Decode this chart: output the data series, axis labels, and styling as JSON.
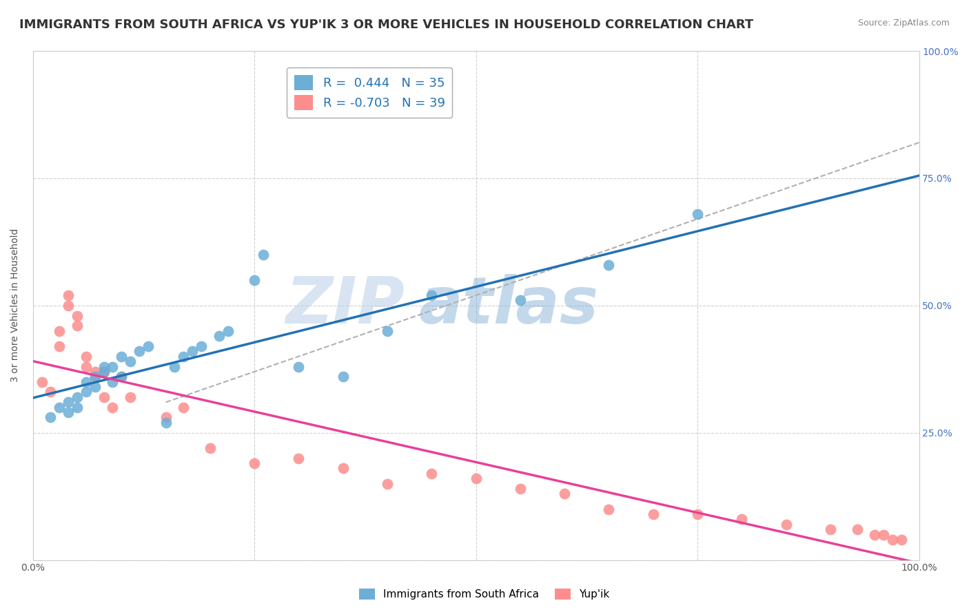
{
  "title": "IMMIGRANTS FROM SOUTH AFRICA VS YUP'IK 3 OR MORE VEHICLES IN HOUSEHOLD CORRELATION CHART",
  "source": "Source: ZipAtlas.com",
  "ylabel": "3 or more Vehicles in Household",
  "series1_label": "Immigrants from South Africa",
  "series2_label": "Yup'ik",
  "series1_R": 0.444,
  "series1_N": 35,
  "series2_R": -0.703,
  "series2_N": 39,
  "series1_color": "#6baed6",
  "series2_color": "#fc8d8d",
  "series1_line_color": "#2171b5",
  "series2_line_color": "#e8409a",
  "trend_line_color": "#b0b0b0",
  "xlim": [
    0.0,
    1.0
  ],
  "ylim": [
    0.0,
    1.0
  ],
  "x_ticks": [
    0.0,
    0.25,
    0.5,
    0.75,
    1.0
  ],
  "x_ticklabels": [
    "0.0%",
    "",
    "",
    "",
    "100.0%"
  ],
  "y_ticks": [
    0.0,
    0.25,
    0.5,
    0.75,
    1.0
  ],
  "y_ticklabels": [
    "",
    "25.0%",
    "50.0%",
    "75.0%",
    "100.0%"
  ],
  "watermark_zip": "ZIP",
  "watermark_atlas": "atlas",
  "series1_x": [
    0.02,
    0.03,
    0.04,
    0.04,
    0.05,
    0.05,
    0.06,
    0.06,
    0.07,
    0.07,
    0.08,
    0.08,
    0.09,
    0.09,
    0.1,
    0.1,
    0.11,
    0.12,
    0.13,
    0.15,
    0.16,
    0.17,
    0.18,
    0.19,
    0.21,
    0.22,
    0.25,
    0.26,
    0.3,
    0.35,
    0.4,
    0.45,
    0.55,
    0.65,
    0.75
  ],
  "series1_y": [
    0.28,
    0.3,
    0.29,
    0.31,
    0.32,
    0.3,
    0.33,
    0.35,
    0.36,
    0.34,
    0.37,
    0.38,
    0.38,
    0.35,
    0.36,
    0.4,
    0.39,
    0.41,
    0.42,
    0.27,
    0.38,
    0.4,
    0.41,
    0.42,
    0.44,
    0.45,
    0.55,
    0.6,
    0.38,
    0.36,
    0.45,
    0.52,
    0.51,
    0.58,
    0.68
  ],
  "series2_x": [
    0.01,
    0.02,
    0.03,
    0.03,
    0.04,
    0.04,
    0.05,
    0.05,
    0.06,
    0.06,
    0.07,
    0.07,
    0.08,
    0.08,
    0.09,
    0.1,
    0.11,
    0.15,
    0.17,
    0.2,
    0.25,
    0.3,
    0.35,
    0.4,
    0.45,
    0.5,
    0.55,
    0.6,
    0.65,
    0.7,
    0.75,
    0.8,
    0.85,
    0.9,
    0.93,
    0.95,
    0.96,
    0.97,
    0.98
  ],
  "series2_y": [
    0.35,
    0.33,
    0.42,
    0.45,
    0.5,
    0.52,
    0.46,
    0.48,
    0.38,
    0.4,
    0.37,
    0.36,
    0.37,
    0.32,
    0.3,
    0.36,
    0.32,
    0.28,
    0.3,
    0.22,
    0.19,
    0.2,
    0.18,
    0.15,
    0.17,
    0.16,
    0.14,
    0.13,
    0.1,
    0.09,
    0.09,
    0.08,
    0.07,
    0.06,
    0.06,
    0.05,
    0.05,
    0.04,
    0.04
  ],
  "background_color": "#ffffff",
  "grid_color": "#d0d0d0",
  "title_fontsize": 13,
  "label_fontsize": 10,
  "tick_fontsize": 10,
  "legend_fontsize": 13
}
